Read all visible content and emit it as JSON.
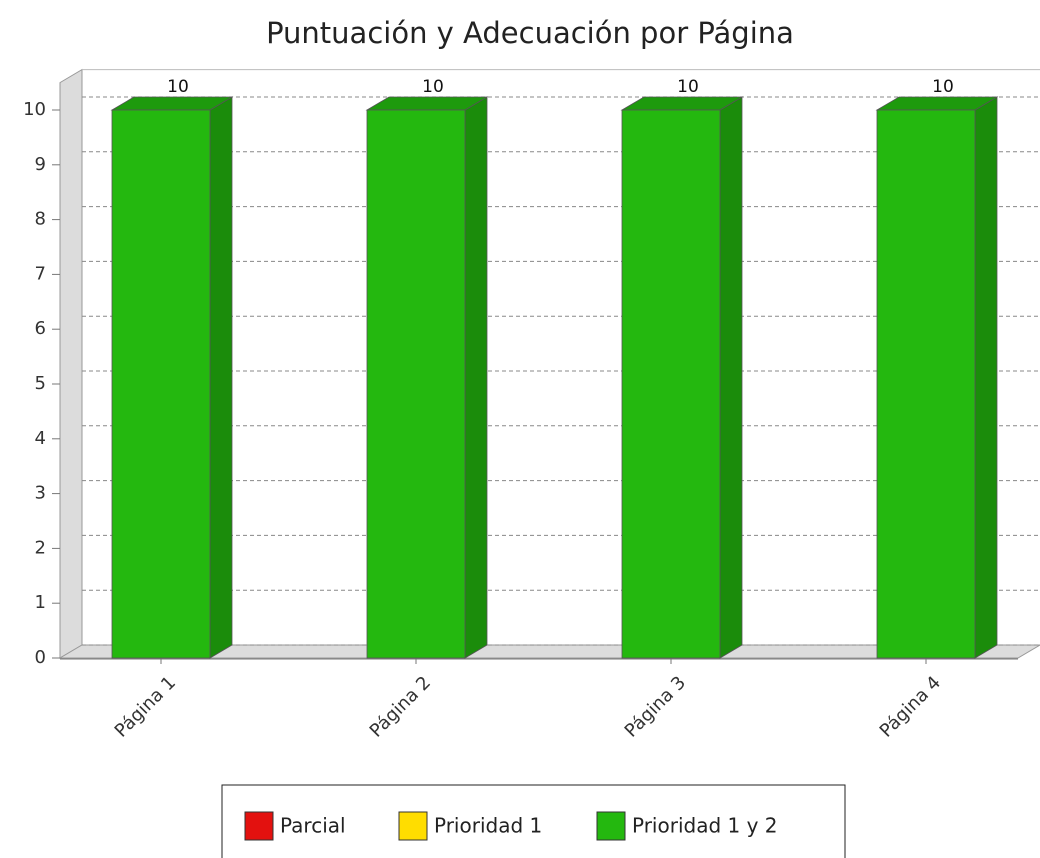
{
  "chart_data": {
    "type": "bar3d",
    "title": "Puntuación y Adecuación por Página",
    "categories": [
      "Página 1",
      "Página 2",
      "Página 3",
      "Página 4"
    ],
    "series": [
      {
        "name": "Parcial",
        "color": "#e3110f",
        "values": [
          null,
          null,
          null,
          null
        ]
      },
      {
        "name": "Prioridad 1",
        "color": "#ffdd00",
        "values": [
          null,
          null,
          null,
          null
        ]
      },
      {
        "name": "Prioridad 1 y 2",
        "color": "#24b80f",
        "values": [
          10,
          10,
          10,
          10
        ]
      }
    ],
    "ylim": [
      0,
      10.5
    ],
    "yticks": [
      0,
      1,
      2,
      3,
      4,
      5,
      6,
      7,
      8,
      9,
      10
    ],
    "grid": true
  }
}
